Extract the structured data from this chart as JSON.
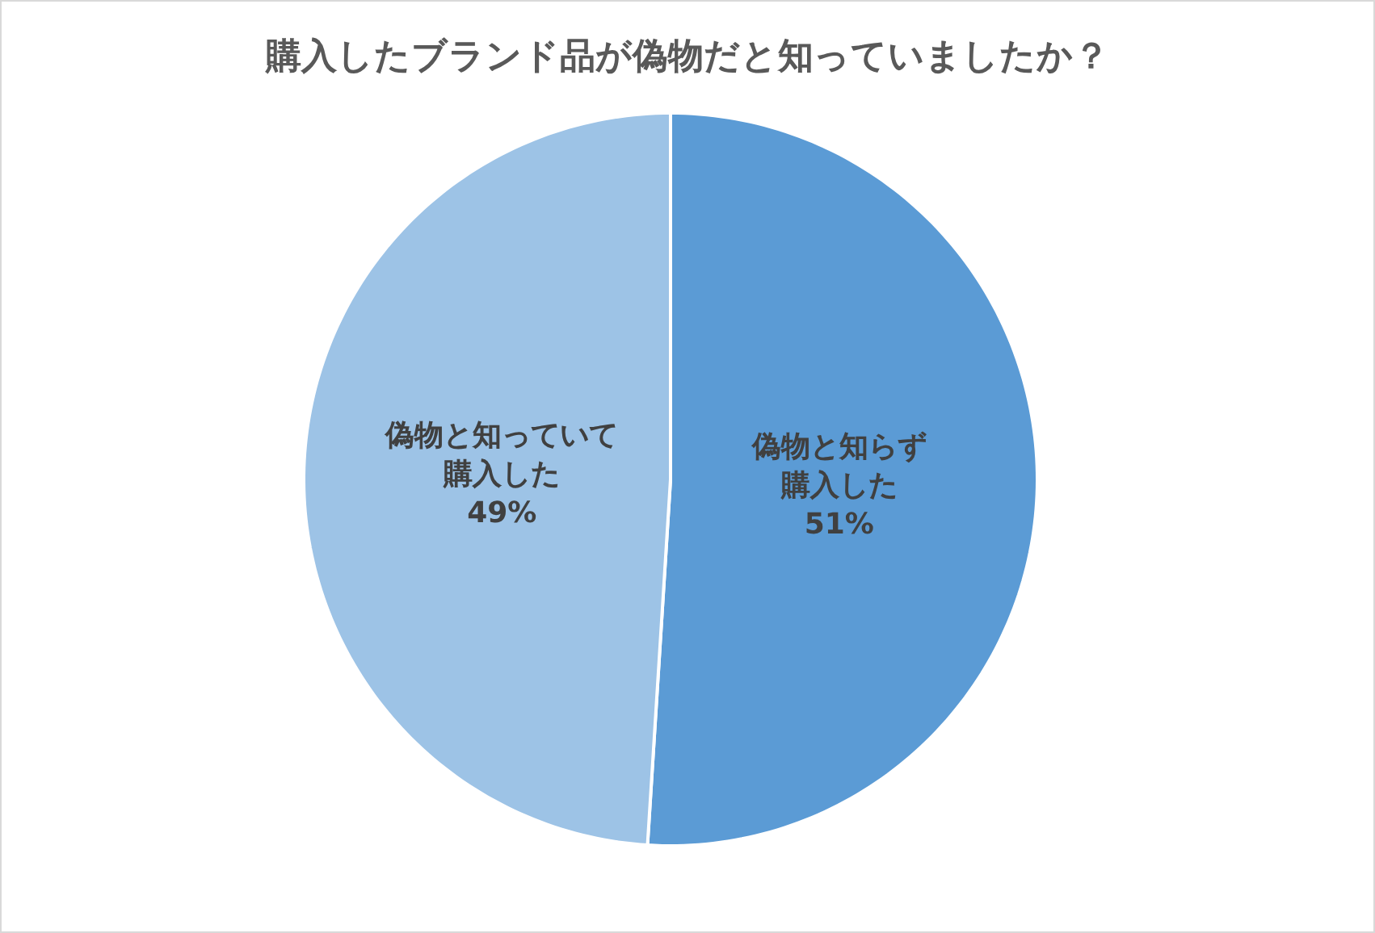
{
  "chart_data": {
    "type": "pie",
    "title": "購入したブランド品が偽物だと知っていましたか？",
    "categories": [
      "偽物と知らず購入した",
      "偽物と知っていて購入した"
    ],
    "value_labels": [
      "51%",
      "49%"
    ],
    "values": [
      51,
      49
    ],
    "colors": [
      "#5b9bd5",
      "#9dc3e6"
    ],
    "data_labels": true,
    "legend": false
  }
}
